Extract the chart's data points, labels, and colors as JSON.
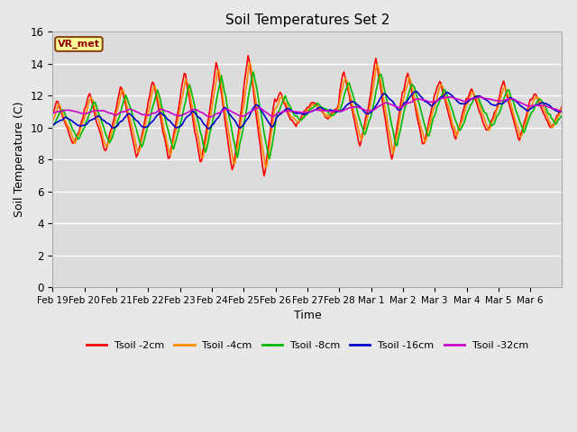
{
  "title": "Soil Temperatures Set 2",
  "xlabel": "Time",
  "ylabel": "Soil Temperature (C)",
  "ylim": [
    0,
    16
  ],
  "yticks": [
    0,
    2,
    4,
    6,
    8,
    10,
    12,
    14,
    16
  ],
  "bg_color": "#dcdcdc",
  "fig_color": "#e8e8e8",
  "annotation_text": "VR_met",
  "annotation_box_color": "#ffff99",
  "annotation_box_edge": "#8b4513",
  "series_colors": {
    "Tsoil -2cm": "#ff0000",
    "Tsoil -4cm": "#ff8c00",
    "Tsoil -8cm": "#00bb00",
    "Tsoil -16cm": "#0000cc",
    "Tsoil -32cm": "#cc00cc"
  },
  "xtick_labels": [
    "Feb 19",
    "Feb 20",
    "Feb 21",
    "Feb 22",
    "Feb 23",
    "Feb 24",
    "Feb 25",
    "Feb 26",
    "Feb 27",
    "Feb 28",
    "Mar 1",
    "Mar 2",
    "Mar 3",
    "Mar 4",
    "Mar 5",
    "Mar 6"
  ],
  "linewidth": 1.2,
  "figsize": [
    6.4,
    4.8
  ],
  "dpi": 100
}
